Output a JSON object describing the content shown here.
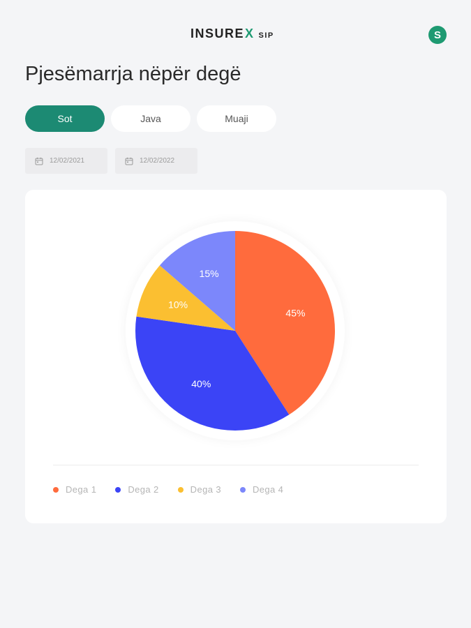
{
  "header": {
    "logo_main": "INSURE",
    "logo_x": "X",
    "logo_suffix": "SIP",
    "profile_initial": "S"
  },
  "page_title": "Pjesëmarrja nëpër degë",
  "tabs": [
    {
      "label": "Sot",
      "active": true
    },
    {
      "label": "Java",
      "active": false
    },
    {
      "label": "Muaji",
      "active": false
    }
  ],
  "dates": {
    "from": "12/02/2021",
    "to": "12/02/2022",
    "icon": "calendar-icon"
  },
  "colors": {
    "brand": "#1c8a73",
    "accent": "#1e9a72"
  },
  "chart_data": {
    "type": "pie",
    "categories": [
      "Dega 1",
      "Dega 2",
      "Dega 3",
      "Dega 4"
    ],
    "values": [
      45,
      40,
      10,
      15
    ],
    "labels": [
      "45%",
      "40%",
      "10%",
      "15%"
    ],
    "colors": [
      "#ff6b3d",
      "#3b44f6",
      "#fbbf31",
      "#7c87fb"
    ],
    "legend_position": "bottom-left"
  }
}
